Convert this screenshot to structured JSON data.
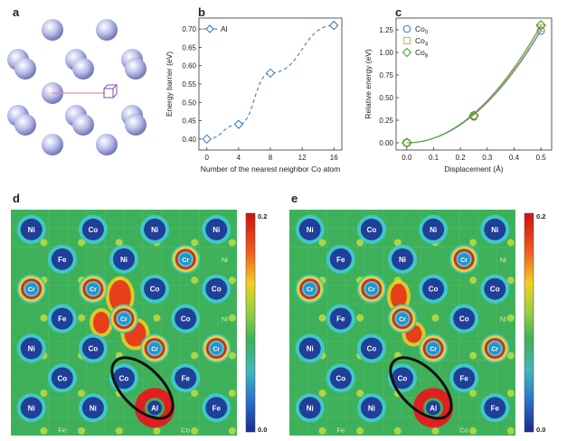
{
  "panels": {
    "a": "a",
    "b": "b",
    "c": "c",
    "d": "d",
    "e": "e"
  },
  "colors": {
    "blue_series": "#3a6fb5",
    "orange_series": "#f0a050",
    "green_series": "#3aa23a",
    "map_green": "#3fb05a",
    "map_red": "#e02020",
    "map_yellow": "#f2e020",
    "map_cyan": "#40c8c8",
    "atom_blue": "#1f3f98",
    "ball_purple": "#b8bde8",
    "pink_bond": "#e88aa4",
    "cube": "#7a4fb0"
  },
  "chart_data": [
    {
      "id": "b",
      "type": "line",
      "xlabel": "Number of the nearest neighbor Co atom",
      "ylabel": "Energy barrier (eV)",
      "xlim": [
        -1,
        17
      ],
      "ylim": [
        0.37,
        0.73
      ],
      "xticks": [
        0,
        4,
        8,
        12,
        16
      ],
      "yticks": [
        0.4,
        0.45,
        0.5,
        0.55,
        0.6,
        0.65,
        0.7
      ],
      "ytick_labels": [
        "0.40",
        "0.45",
        "0.50",
        "0.55",
        "0.60",
        "0.65",
        "0.70"
      ],
      "legend_position": "top-left",
      "series": [
        {
          "name": "Al",
          "x": [
            0,
            4,
            8,
            16
          ],
          "y": [
            0.4,
            0.44,
            0.58,
            0.71
          ]
        }
      ]
    },
    {
      "id": "c",
      "type": "line",
      "xlabel": "Displacement (Å)",
      "ylabel": "Relative energy (eV)",
      "xlim": [
        -0.04,
        0.54
      ],
      "ylim": [
        -0.08,
        1.38
      ],
      "xticks": [
        0.0,
        0.1,
        0.2,
        0.3,
        0.4,
        0.5
      ],
      "yticks": [
        0.0,
        0.25,
        0.5,
        0.75,
        1.0,
        1.25
      ],
      "xtick_labels": [
        "0.0",
        "0.1",
        "0.2",
        "0.3",
        "0.4",
        "0.5"
      ],
      "ytick_labels": [
        "0.00",
        "0.25",
        "0.50",
        "0.75",
        "1.00",
        "1.25"
      ],
      "legend_position": "top-left",
      "series": [
        {
          "name_main": "Co",
          "name_sub": "0",
          "marker": "circle",
          "x": [
            0,
            0.25,
            0.5
          ],
          "y": [
            0,
            0.29,
            1.24
          ]
        },
        {
          "name_main": "Co",
          "name_sub": "4",
          "marker": "square",
          "x": [
            0,
            0.25,
            0.5
          ],
          "y": [
            0,
            0.3,
            1.27
          ]
        },
        {
          "name_main": "Co",
          "name_sub": "8",
          "marker": "diamond",
          "x": [
            0,
            0.25,
            0.5
          ],
          "y": [
            0,
            0.3,
            1.3
          ]
        }
      ]
    }
  ],
  "maps": {
    "colorbar_max": "0.2",
    "colorbar_min": "0.0",
    "d": {
      "atoms": [
        {
          "label": "Ni",
          "c": 0.5,
          "r": 0.5,
          "kind": "blue"
        },
        {
          "label": "Co",
          "c": 2.0,
          "r": 0.5,
          "kind": "blue"
        },
        {
          "label": "Ni",
          "c": 3.5,
          "r": 0.5,
          "kind": "blue"
        },
        {
          "label": "Ni",
          "c": 5.0,
          "r": 0.5,
          "kind": "blue"
        },
        {
          "label": "Fe",
          "c": 1.25,
          "r": 1.25,
          "kind": "blue"
        },
        {
          "label": "Ni",
          "c": 2.75,
          "r": 1.25,
          "kind": "blue"
        },
        {
          "label": "Cr",
          "c": 4.25,
          "r": 1.25,
          "kind": "cr"
        },
        {
          "label": "Ni",
          "c": 5.2,
          "r": 1.25,
          "kind": "faint"
        },
        {
          "label": "Cr",
          "c": 0.5,
          "r": 2.0,
          "kind": "cr"
        },
        {
          "label": "Cr",
          "c": 2.0,
          "r": 2.0,
          "kind": "cr"
        },
        {
          "label": "Co",
          "c": 3.5,
          "r": 2.0,
          "kind": "blue"
        },
        {
          "label": "Co",
          "c": 5.0,
          "r": 2.0,
          "kind": "blue"
        },
        {
          "label": "Fe",
          "c": 1.25,
          "r": 2.75,
          "kind": "blue"
        },
        {
          "label": "Cr",
          "c": 2.75,
          "r": 2.75,
          "kind": "cr"
        },
        {
          "label": "Co",
          "c": 4.25,
          "r": 2.75,
          "kind": "blue"
        },
        {
          "label": "Ni",
          "c": 5.2,
          "r": 2.75,
          "kind": "faint"
        },
        {
          "label": "Ni",
          "c": 0.5,
          "r": 3.5,
          "kind": "blue"
        },
        {
          "label": "Co",
          "c": 2.0,
          "r": 3.5,
          "kind": "blue"
        },
        {
          "label": "Cr",
          "c": 3.5,
          "r": 3.5,
          "kind": "cr"
        },
        {
          "label": "Cr",
          "c": 5.0,
          "r": 3.5,
          "kind": "cr"
        },
        {
          "label": "Co",
          "c": 1.25,
          "r": 4.25,
          "kind": "blue"
        },
        {
          "label": "Co",
          "c": 2.75,
          "r": 4.25,
          "kind": "blue"
        },
        {
          "label": "Fe",
          "c": 4.25,
          "r": 4.25,
          "kind": "blue"
        },
        {
          "label": "Ni",
          "c": 0.5,
          "r": 5.0,
          "kind": "blue"
        },
        {
          "label": "Ni",
          "c": 2.0,
          "r": 5.0,
          "kind": "blue"
        },
        {
          "label": "Al",
          "c": 3.5,
          "r": 5.0,
          "kind": "al"
        },
        {
          "label": "Fe",
          "c": 5.0,
          "r": 5.0,
          "kind": "blue"
        },
        {
          "label": "Fe",
          "c": 1.25,
          "r": 5.55,
          "kind": "faint"
        },
        {
          "label": "Co",
          "c": 4.25,
          "r": 5.55,
          "kind": "faint"
        }
      ]
    },
    "e": {
      "atoms": [
        {
          "label": "Ni",
          "c": 0.5,
          "r": 0.5,
          "kind": "blue"
        },
        {
          "label": "Co",
          "c": 2.0,
          "r": 0.5,
          "kind": "blue"
        },
        {
          "label": "Ni",
          "c": 3.5,
          "r": 0.5,
          "kind": "blue"
        },
        {
          "label": "Ni",
          "c": 5.0,
          "r": 0.5,
          "kind": "blue"
        },
        {
          "label": "Fe",
          "c": 1.25,
          "r": 1.25,
          "kind": "blue"
        },
        {
          "label": "Ni",
          "c": 2.75,
          "r": 1.25,
          "kind": "blue"
        },
        {
          "label": "Cr",
          "c": 4.25,
          "r": 1.25,
          "kind": "cr"
        },
        {
          "label": "Ni",
          "c": 5.2,
          "r": 1.25,
          "kind": "faint"
        },
        {
          "label": "Cr",
          "c": 0.5,
          "r": 2.0,
          "kind": "cr"
        },
        {
          "label": "Cr",
          "c": 2.0,
          "r": 2.0,
          "kind": "cr"
        },
        {
          "label": "Co",
          "c": 3.5,
          "r": 2.0,
          "kind": "blue"
        },
        {
          "label": "Co",
          "c": 5.0,
          "r": 2.0,
          "kind": "blue"
        },
        {
          "label": "Fe",
          "c": 1.25,
          "r": 2.75,
          "kind": "blue"
        },
        {
          "label": "Cr",
          "c": 2.75,
          "r": 2.75,
          "kind": "cr"
        },
        {
          "label": "Co",
          "c": 4.25,
          "r": 2.75,
          "kind": "blue"
        },
        {
          "label": "Ni",
          "c": 5.2,
          "r": 2.75,
          "kind": "faint"
        },
        {
          "label": "Ni",
          "c": 0.5,
          "r": 3.5,
          "kind": "blue"
        },
        {
          "label": "Co",
          "c": 2.0,
          "r": 3.5,
          "kind": "blue"
        },
        {
          "label": "Cr",
          "c": 3.5,
          "r": 3.5,
          "kind": "cr"
        },
        {
          "label": "Cr",
          "c": 5.0,
          "r": 3.5,
          "kind": "cr"
        },
        {
          "label": "Co",
          "c": 1.25,
          "r": 4.25,
          "kind": "blue"
        },
        {
          "label": "Co",
          "c": 2.75,
          "r": 4.25,
          "kind": "blue"
        },
        {
          "label": "Fe",
          "c": 4.25,
          "r": 4.25,
          "kind": "blue"
        },
        {
          "label": "Ni",
          "c": 0.5,
          "r": 5.0,
          "kind": "blue"
        },
        {
          "label": "Ni",
          "c": 2.0,
          "r": 5.0,
          "kind": "blue"
        },
        {
          "label": "Al",
          "c": 3.5,
          "r": 5.0,
          "kind": "al"
        },
        {
          "label": "Fe",
          "c": 5.0,
          "r": 5.0,
          "kind": "blue"
        },
        {
          "label": "Fe",
          "c": 1.25,
          "r": 5.55,
          "kind": "faint"
        },
        {
          "label": "Co",
          "c": 4.25,
          "r": 5.55,
          "kind": "faint"
        }
      ]
    }
  }
}
